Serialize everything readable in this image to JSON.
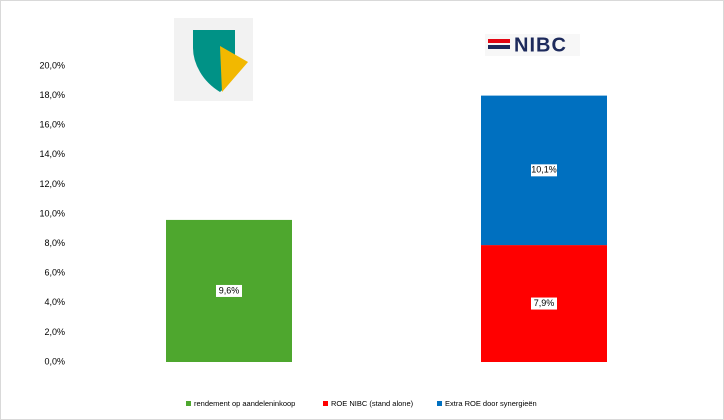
{
  "chart_data": {
    "type": "stacked_bar",
    "categories": [
      null,
      "NIBC"
    ],
    "series": [
      {
        "name": "rendement op aandeleninkoop",
        "color": "#4ea72e",
        "values": [
          9.6,
          null
        ],
        "value_labels": [
          "9,6%",
          null
        ]
      },
      {
        "name": "ROE NIBC (stand alone)",
        "color": "#ff0000",
        "values": [
          null,
          7.9
        ],
        "value_labels": [
          null,
          "7,9%"
        ]
      },
      {
        "name": "Extra ROE door synergieën",
        "color": "#0070c0",
        "values": [
          null,
          10.1
        ],
        "value_labels": [
          null,
          "10,1%"
        ]
      }
    ],
    "ylim": [
      0,
      20
    ],
    "yticks": [
      {
        "value": 0,
        "label": "0,0%"
      },
      {
        "value": 2,
        "label": "2,0%"
      },
      {
        "value": 4,
        "label": "4,0%"
      },
      {
        "value": 6,
        "label": "6,0%"
      },
      {
        "value": 8,
        "label": "8,0%"
      },
      {
        "value": 10,
        "label": "10,0%"
      },
      {
        "value": 12,
        "label": "12,0%"
      },
      {
        "value": 14,
        "label": "14,0%"
      },
      {
        "value": 16,
        "label": "16,0%"
      },
      {
        "value": 18,
        "label": "18,0%"
      },
      {
        "value": 20,
        "label": "20,0%"
      }
    ],
    "grid": false,
    "legend": "bottom"
  }
}
